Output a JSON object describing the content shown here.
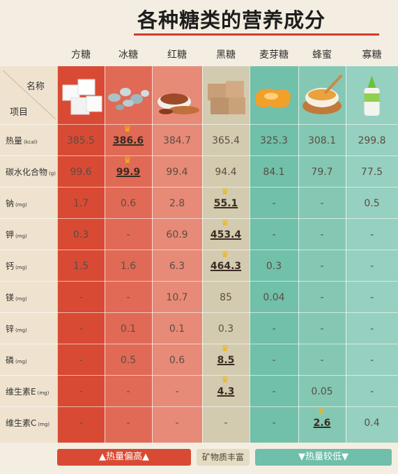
{
  "title": "各种糖类的营养成分",
  "header_corner": {
    "top": "名称",
    "bottom": "项目"
  },
  "columns": [
    {
      "name": "方糖",
      "image": "sugar-cube-icon",
      "color": "#d94a34"
    },
    {
      "name": "冰糖",
      "image": "rock-sugar-icon",
      "color": "#e06a55"
    },
    {
      "name": "红糖",
      "image": "brown-sugar-icon",
      "color": "#e78a77"
    },
    {
      "name": "黑糖",
      "image": "black-sugar-icon",
      "color": "#d3cbb0"
    },
    {
      "name": "麦芽糖",
      "image": "maltose-icon",
      "color": "#70c0aa"
    },
    {
      "name": "蜂蜜",
      "image": "honey-icon",
      "color": "#84c8b4"
    },
    {
      "name": "寡糖",
      "image": "oligosaccharide-icon",
      "color": "#96d0c0"
    }
  ],
  "rows": [
    {
      "label": "热量",
      "unit": "(kcal)",
      "values": [
        "385.5",
        "386.6",
        "384.7",
        "365.4",
        "325.3",
        "308.1",
        "299.8"
      ],
      "best": 1
    },
    {
      "label": "碳水化合物",
      "unit": "(g)",
      "values": [
        "99.6",
        "99.9",
        "99.4",
        "94.4",
        "84.1",
        "79.7",
        "77.5"
      ],
      "best": 1
    },
    {
      "label": "钠",
      "unit": "(mg)",
      "values": [
        "1.7",
        "0.6",
        "2.8",
        "55.1",
        "-",
        "-",
        "0.5"
      ],
      "best": 3
    },
    {
      "label": "钾",
      "unit": "(mg)",
      "values": [
        "0.3",
        "-",
        "60.9",
        "453.4",
        "-",
        "-",
        "-"
      ],
      "best": 3
    },
    {
      "label": "钙",
      "unit": "(mg)",
      "values": [
        "1.5",
        "1.6",
        "6.3",
        "464.3",
        "0.3",
        "-",
        "-"
      ],
      "best": 3
    },
    {
      "label": "镁",
      "unit": "(mg)",
      "values": [
        "-",
        "-",
        "10.7",
        "85",
        "0.04",
        "-",
        "-"
      ],
      "best": -1
    },
    {
      "label": "锌",
      "unit": "(mg)",
      "values": [
        "-",
        "0.1",
        "0.1",
        "0.3",
        "-",
        "-",
        "-"
      ],
      "best": -1
    },
    {
      "label": "磷",
      "unit": "(mg)",
      "values": [
        "-",
        "0.5",
        "0.6",
        "8.5",
        "-",
        "-",
        "-"
      ],
      "best": 3
    },
    {
      "label": "维生素E",
      "unit": "(mg)",
      "values": [
        "-",
        "-",
        "-",
        "4.3",
        "-",
        "0.05",
        "-"
      ],
      "best": 3
    },
    {
      "label": "维生素C",
      "unit": "(mg)",
      "values": [
        "-",
        "-",
        "-",
        "-",
        "-",
        "2.6",
        "0.4"
      ],
      "best": 5
    }
  ],
  "legend": [
    {
      "label": "▲热量偏高▲",
      "bg": "#d94a34",
      "fg": "#ffffff"
    },
    {
      "label": "矿物质丰富",
      "bg": "#e4dcc2",
      "fg": "#4a4037"
    },
    {
      "label": "▼热量较低▼",
      "bg": "#6fbfaa",
      "fg": "#ffffff"
    }
  ],
  "crown_icon": "crown-icon"
}
